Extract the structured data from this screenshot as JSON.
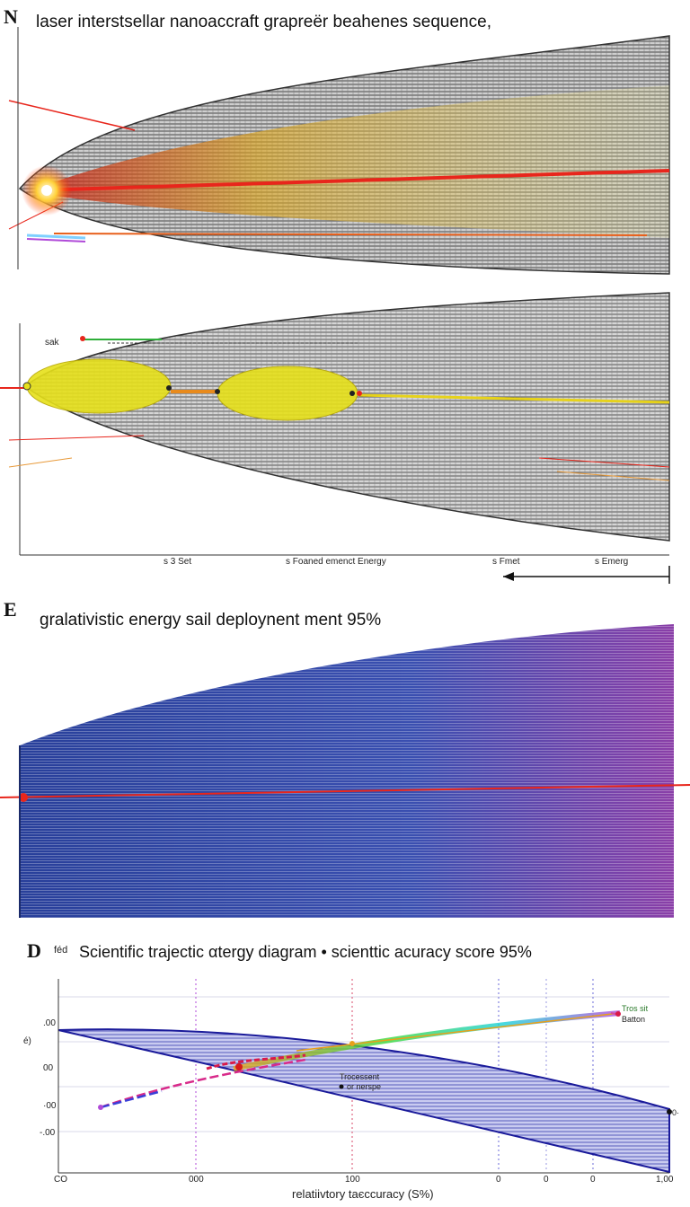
{
  "panel_n": {
    "letter": "N",
    "title": "laser interstsellar  nanoaccraft grapreёr beahenes sequence,"
  },
  "panel_mid": {
    "sail_label": "sak",
    "ticks": [
      "s 3 Set",
      "s Foaned emenct Energy",
      "s Fmet",
      "s Emerg"
    ]
  },
  "panel_e": {
    "letter": "E",
    "title": "gralativistic  energy sail  deploynent  ment 95%"
  },
  "panel_d": {
    "letter": "D",
    "side_label": "féd",
    "title": "Scientific trajectic αtergy diagram • scienttic  acuracy score  95%",
    "y_ticks": [
      ".00",
      "00",
      "·00",
      "-.00"
    ],
    "y_axis_label": "é)",
    "x_ticks": [
      "CO",
      "000",
      "100",
      "0",
      "0",
      "0",
      "1,00"
    ],
    "x_axis_label": "relatiivtory taєccuracy (S%)",
    "legend": [
      "Tros sit",
      "Batton"
    ],
    "annotation": [
      "Trocessent",
      "or nerspe"
    ],
    "end_label": "0·"
  },
  "colors": {
    "laser": "#e8261c",
    "sail_yellow": "#e6e01a",
    "mesh_dark": "#3d3d3d",
    "mesh_blue": "#283f9a",
    "mesh_violet": "#8a3fa8"
  }
}
